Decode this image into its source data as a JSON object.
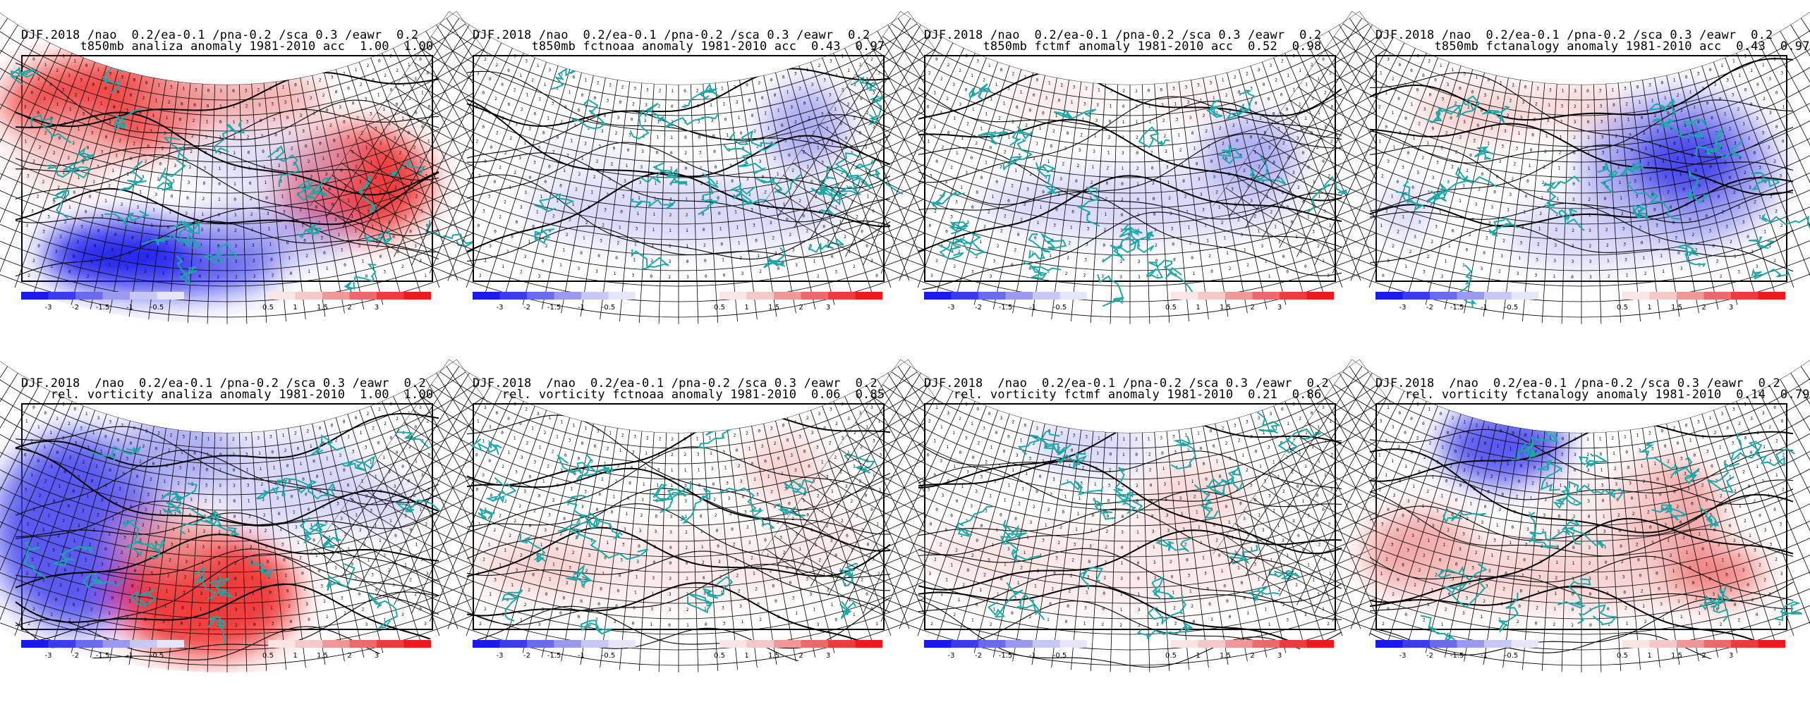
{
  "panels": [
    {
      "id": "t850-analiza",
      "title_line1": "DJF.2018 /nao  0.2/ea-0.1 /pna-0.2 /sca 0.3 /eawr  0.2",
      "title_line2": "        t850mb analiza anomaly 1981-2010 acc  1.00  1.00",
      "field": "t850mb",
      "source": "analiza",
      "acc": [
        1.0,
        1.0
      ]
    },
    {
      "id": "t850-fctnoaa",
      "title_line1": "DJF.2018 /nao  0.2/ea-0.1 /pna-0.2 /sca 0.3 /eawr  0.2",
      "title_line2": "        t850mb fctnoaa anomaly 1981-2010 acc  0.43  0.97",
      "field": "t850mb",
      "source": "fctnoaa",
      "acc": [
        0.43,
        0.97
      ]
    },
    {
      "id": "t850-fctmf",
      "title_line1": "DJF.2018 /nao  0.2/ea-0.1 /pna-0.2 /sca 0.3 /eawr  0.2",
      "title_line2": "        t850mb fctmf anomaly 1981-2010 acc  0.52  0.98",
      "field": "t850mb",
      "source": "fctmf",
      "acc": [
        0.52,
        0.98
      ]
    },
    {
      "id": "t850-fctanalogy",
      "title_line1": "DJF.2018 /nao  0.2/ea-0.1 /pna-0.2 /sca 0.3 /eawr  0.2",
      "title_line2": "        t850mb fctanalogy anomaly 1981-2010 acc  0.43  0.97",
      "field": "t850mb",
      "source": "fctanalogy",
      "acc": [
        0.43,
        0.97
      ]
    },
    {
      "id": "vort-analiza",
      "title_line1": "DJF.2018  /nao  0.2/ea-0.1 /pna-0.2 /sca 0.3 /eawr  0.2",
      "title_line2": "    rel. vorticity analiza anomaly 1981-2010  1.00  1.00",
      "field": "rel. vorticity",
      "source": "analiza",
      "acc": [
        1.0,
        1.0
      ]
    },
    {
      "id": "vort-fctnoaa",
      "title_line1": "DJF.2018  /nao  0.2/ea-0.1 /pna-0.2 /sca 0.3 /eawr  0.2",
      "title_line2": "    rel. vorticity fctnoaa anomaly 1981-2010  0.06  0.85",
      "field": "rel. vorticity",
      "source": "fctnoaa",
      "acc": [
        0.06,
        0.85
      ]
    },
    {
      "id": "vort-fctmf",
      "title_line1": "DJF.2018  /nao  0.2/ea-0.1 /pna-0.2 /sca 0.3 /eawr  0.2",
      "title_line2": "    rel. vorticity fctmf anomaly 1981-2010  0.21  0.86",
      "field": "rel. vorticity",
      "source": "fctmf",
      "acc": [
        0.21,
        0.86
      ]
    },
    {
      "id": "vort-fctanalogy",
      "title_line1": "DJF.2018  /nao  0.2/ea-0.1 /pna-0.2 /sca 0.3 /eawr  0.2",
      "title_line2": "    rel. vorticity fctanalogy anomaly 1981-2010  0.14  0.79",
      "field": "rel. vorticity",
      "source": "fctanalogy",
      "acc": [
        0.14,
        0.79
      ]
    }
  ],
  "colorbar": {
    "negative_labels": [
      "-3",
      "-2",
      "-1.5",
      "-1",
      "-0.5"
    ],
    "positive_labels": [
      "0.5",
      "1",
      "1.5",
      "2",
      "3"
    ],
    "negative_colors": [
      "#1a1aee",
      "#3c3cee",
      "#6a6aee",
      "#9a9af0",
      "#c8c8f6",
      "#e6e6fb"
    ],
    "positive_colors": [
      "#fbe4e4",
      "#f6c8c8",
      "#f09898",
      "#ee6a6a",
      "#ee3c3c",
      "#ee1a1a"
    ]
  },
  "colors": {
    "coast": "#1aa8a8",
    "contour": "#000000",
    "grid": "#000000"
  }
}
